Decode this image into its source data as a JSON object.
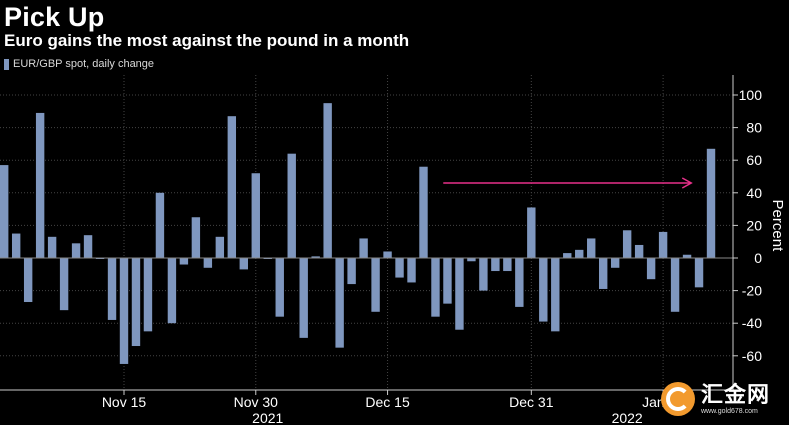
{
  "title": "Pick Up",
  "subtitle": "Euro gains the most against the pound in a month",
  "legend_label": "EUR/GBP spot, daily change",
  "watermark": {
    "name": "汇金网",
    "url": "www.gold678.com"
  },
  "colors": {
    "bar": "#7f97bf",
    "arrow": "#e8318a",
    "grid": "#444444",
    "axis": "#cccccc",
    "background": "#000000"
  },
  "chart_data": {
    "type": "bar",
    "title": "Pick Up",
    "subtitle": "Euro gains the most against the pound in a month",
    "ylabel": "Percent",
    "ylim": [
      -70,
      110
    ],
    "yticks": [
      100,
      80,
      60,
      40,
      20,
      0,
      -20,
      -40,
      -60
    ],
    "grid": true,
    "legend": "top-left",
    "y_axis_side": "right",
    "x_tick_labels": [
      "Nov 15",
      "Nov 30",
      "Dec 15",
      "Dec 31",
      "Jan 14"
    ],
    "x_tick_bar_index": [
      10,
      21,
      32,
      44,
      55
    ],
    "x_year_labels": [
      {
        "label": "2021",
        "bar_index": 22
      },
      {
        "label": "2022",
        "bar_index": 52
      }
    ],
    "series": [
      {
        "name": "EUR/GBP spot, daily change",
        "values": [
          57,
          15,
          -27,
          89,
          13,
          -32,
          9,
          14,
          0,
          -38,
          -65,
          -54,
          -45,
          40,
          -40,
          -4,
          25,
          -6,
          13,
          87,
          -7,
          52,
          0,
          -36,
          64,
          -49,
          1,
          95,
          -55,
          -16,
          12,
          -33,
          4,
          -12,
          -15,
          56,
          -36,
          -28,
          -44,
          -2,
          -20,
          -8,
          -8,
          -30,
          31,
          -39,
          -45,
          3,
          5,
          12,
          -19,
          -6,
          17,
          8,
          -13,
          16,
          -33,
          2,
          -18,
          67
        ]
      }
    ],
    "annotations": [
      {
        "type": "arrow",
        "from_bar_index": 37,
        "to_bar_index": 57,
        "y": 46
      }
    ]
  }
}
